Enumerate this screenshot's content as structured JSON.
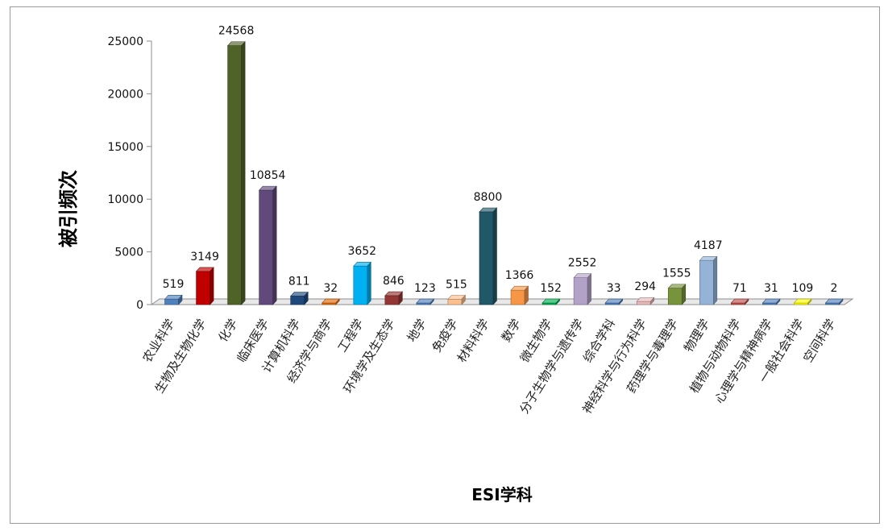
{
  "chart_data": {
    "type": "bar",
    "title": "",
    "xlabel": "ESI学科",
    "ylabel": "被引频次",
    "ylim": [
      0,
      25000
    ],
    "yticks": [
      0,
      5000,
      10000,
      15000,
      20000,
      25000
    ],
    "grid": false,
    "legend": "none",
    "categories": [
      "农业科学",
      "生物及生物化学",
      "化学",
      "临床医学",
      "计算机科学",
      "经济学与商学",
      "工程学",
      "环境学及生态学",
      "地学",
      "免疫学",
      "材料科学",
      "数学",
      "微生物学",
      "分子生物学与遗传学",
      "综合学科",
      "神经科学与行为科学",
      "药理学与毒理学",
      "物理学",
      "植物与动物科学",
      "心理学与精神病学",
      "一般社会科学",
      "空间科学"
    ],
    "values": [
      519,
      3149,
      24568,
      10854,
      811,
      32,
      3652,
      846,
      123,
      515,
      8800,
      1366,
      152,
      2552,
      33,
      294,
      1555,
      4187,
      71,
      31,
      109,
      2
    ],
    "colors": [
      "#4f81bd",
      "#c00000",
      "#4f6228",
      "#604a7b",
      "#1f497d",
      "#e46c0a",
      "#00b0f0",
      "#943634",
      "#4f81bd",
      "#fac090",
      "#215868",
      "#f79646",
      "#00b050",
      "#b3a2c7",
      "#4f81bd",
      "#e6b9b8",
      "#77933c",
      "#95b3d7",
      "#c0504d",
      "#4f81bd",
      "#ffff00",
      "#4f81bd"
    ]
  }
}
